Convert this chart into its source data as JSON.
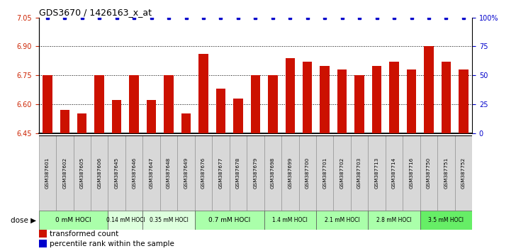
{
  "title": "GDS3670 / 1426163_x_at",
  "samples": [
    "GSM387601",
    "GSM387602",
    "GSM387605",
    "GSM387606",
    "GSM387645",
    "GSM387646",
    "GSM387647",
    "GSM387648",
    "GSM387649",
    "GSM387676",
    "GSM387677",
    "GSM387678",
    "GSM387679",
    "GSM387698",
    "GSM387699",
    "GSM387700",
    "GSM387701",
    "GSM387702",
    "GSM387703",
    "GSM387713",
    "GSM387714",
    "GSM387716",
    "GSM387750",
    "GSM387751",
    "GSM387752"
  ],
  "bar_values": [
    6.75,
    6.57,
    6.55,
    6.75,
    6.62,
    6.75,
    6.62,
    6.75,
    6.55,
    6.86,
    6.68,
    6.63,
    6.75,
    6.75,
    6.84,
    6.82,
    6.8,
    6.78,
    6.75,
    6.8,
    6.82,
    6.78,
    6.9,
    6.82,
    6.78
  ],
  "dose_groups": [
    {
      "label": "0 mM HOCl",
      "start": 0,
      "end": 4,
      "color": "#aaffaa"
    },
    {
      "label": "0.14 mM HOCl",
      "start": 4,
      "end": 6,
      "color": "#ddffdd"
    },
    {
      "label": "0.35 mM HOCl",
      "start": 6,
      "end": 9,
      "color": "#ddffdd"
    },
    {
      "label": "0.7 mM HOCl",
      "start": 9,
      "end": 13,
      "color": "#aaffaa"
    },
    {
      "label": "1.4 mM HOCl",
      "start": 13,
      "end": 16,
      "color": "#aaffaa"
    },
    {
      "label": "2.1 mM HOCl",
      "start": 16,
      "end": 19,
      "color": "#aaffaa"
    },
    {
      "label": "2.8 mM HOCl",
      "start": 19,
      "end": 22,
      "color": "#aaffaa"
    },
    {
      "label": "3.5 mM HOCl",
      "start": 22,
      "end": 25,
      "color": "#66ee66"
    }
  ],
  "bar_color": "#cc1100",
  "percentile_color": "#0000cc",
  "ylim_left": [
    6.45,
    7.05
  ],
  "yticks_left": [
    6.45,
    6.6,
    6.75,
    6.9,
    7.05
  ],
  "yticks_right": [
    0,
    25,
    50,
    75,
    100
  ],
  "ylabel_left_color": "#cc2200",
  "ylabel_right_color": "#0000cc",
  "background_color": "#ffffff",
  "label_transformed": "transformed count",
  "label_percentile": "percentile rank within the sample"
}
